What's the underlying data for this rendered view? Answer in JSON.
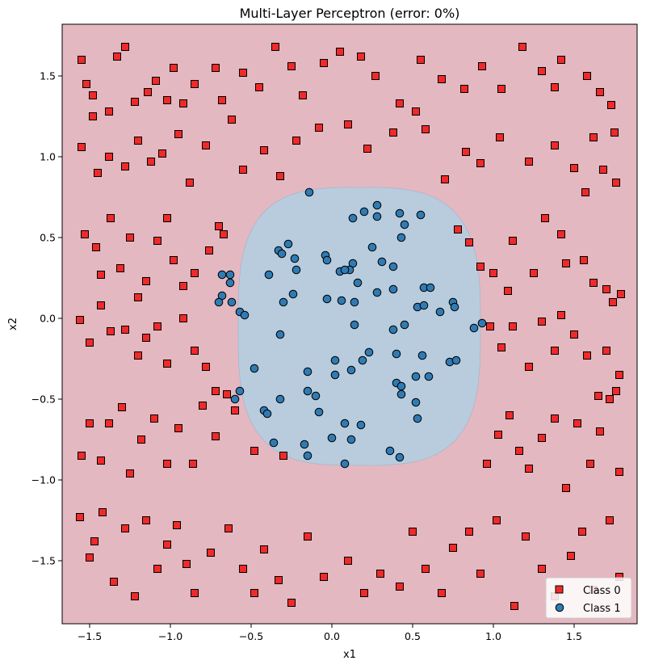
{
  "chart_data": {
    "type": "scatter",
    "title": "Multi-Layer Perceptron (error: 0%)",
    "xlabel": "x1",
    "ylabel": "x2",
    "xlim": [
      -1.67,
      1.89
    ],
    "ylim": [
      -1.89,
      1.82
    ],
    "xticks": [
      -1.5,
      -1.0,
      -0.5,
      0.0,
      0.5,
      1.0,
      1.5
    ],
    "xtick_labels": [
      "−1.5",
      "−1.0",
      "−0.5",
      "0.0",
      "0.5",
      "1.0",
      "1.5"
    ],
    "yticks": [
      -1.5,
      -1.0,
      -0.5,
      0.0,
      0.5,
      1.0,
      1.5
    ],
    "ytick_labels": [
      "−1.5",
      "−1.0",
      "−0.5",
      "0.0",
      "0.5",
      "1.0",
      "1.5"
    ],
    "grid": false,
    "legend_position": "lower-right",
    "decision_regions": {
      "outer_class": "Class 0",
      "outer_color": "#e3b8c0",
      "inner_class": "Class 1",
      "inner_color": "#b8ccdd",
      "boundary_center": [
        0.17,
        -0.05
      ],
      "boundary_radii": [
        0.75,
        0.86
      ]
    },
    "series": [
      {
        "name": "Class 0",
        "marker": "square",
        "color": "#ee2a2a",
        "points": [
          [
            -1.55,
            1.6
          ],
          [
            -1.52,
            1.45
          ],
          [
            -1.48,
            1.38
          ],
          [
            -1.38,
            1.28
          ],
          [
            -1.33,
            1.62
          ],
          [
            -1.28,
            1.68
          ],
          [
            -1.22,
            1.34
          ],
          [
            -1.14,
            1.4
          ],
          [
            -1.09,
            1.47
          ],
          [
            -1.02,
            1.35
          ],
          [
            -0.98,
            1.55
          ],
          [
            -0.92,
            1.33
          ],
          [
            -0.85,
            1.45
          ],
          [
            -0.72,
            1.55
          ],
          [
            -0.68,
            1.35
          ],
          [
            -0.55,
            1.52
          ],
          [
            -0.45,
            1.43
          ],
          [
            -0.35,
            1.68
          ],
          [
            -0.25,
            1.56
          ],
          [
            -0.18,
            1.38
          ],
          [
            -0.05,
            1.58
          ],
          [
            0.05,
            1.65
          ],
          [
            0.18,
            1.62
          ],
          [
            0.27,
            1.5
          ],
          [
            0.42,
            1.33
          ],
          [
            0.55,
            1.6
          ],
          [
            0.68,
            1.48
          ],
          [
            0.82,
            1.42
          ],
          [
            0.93,
            1.56
          ],
          [
            1.05,
            1.42
          ],
          [
            1.18,
            1.68
          ],
          [
            1.3,
            1.53
          ],
          [
            1.38,
            1.43
          ],
          [
            1.42,
            1.6
          ],
          [
            1.58,
            1.5
          ],
          [
            1.66,
            1.4
          ],
          [
            1.73,
            1.32
          ],
          [
            -1.55,
            1.06
          ],
          [
            -1.48,
            1.25
          ],
          [
            -1.45,
            0.9
          ],
          [
            -1.38,
            1.0
          ],
          [
            -1.28,
            0.94
          ],
          [
            -1.2,
            1.1
          ],
          [
            -1.12,
            0.97
          ],
          [
            -1.05,
            1.02
          ],
          [
            -0.95,
            1.14
          ],
          [
            -0.88,
            0.84
          ],
          [
            -0.78,
            1.07
          ],
          [
            -0.62,
            1.23
          ],
          [
            -0.55,
            0.92
          ],
          [
            -0.42,
            1.04
          ],
          [
            -0.32,
            0.88
          ],
          [
            -0.22,
            1.1
          ],
          [
            -0.08,
            1.18
          ],
          [
            0.1,
            1.2
          ],
          [
            0.22,
            1.05
          ],
          [
            0.38,
            1.15
          ],
          [
            0.52,
            1.28
          ],
          [
            0.58,
            1.17
          ],
          [
            0.7,
            0.86
          ],
          [
            0.83,
            1.03
          ],
          [
            0.92,
            0.96
          ],
          [
            1.04,
            1.12
          ],
          [
            1.22,
            0.97
          ],
          [
            1.38,
            1.07
          ],
          [
            1.5,
            0.93
          ],
          [
            1.62,
            1.12
          ],
          [
            1.75,
            1.15
          ],
          [
            1.76,
            0.84
          ],
          [
            1.68,
            0.92
          ],
          [
            1.57,
            0.78
          ],
          [
            -1.53,
            0.52
          ],
          [
            -1.46,
            0.44
          ],
          [
            -1.43,
            0.27
          ],
          [
            -1.37,
            0.62
          ],
          [
            -1.31,
            0.31
          ],
          [
            -1.25,
            0.5
          ],
          [
            -1.2,
            0.13
          ],
          [
            -1.15,
            0.23
          ],
          [
            -1.08,
            0.48
          ],
          [
            -1.02,
            0.62
          ],
          [
            -0.98,
            0.36
          ],
          [
            -0.92,
            0.2
          ],
          [
            -0.85,
            0.28
          ],
          [
            -0.76,
            0.42
          ],
          [
            -0.7,
            0.57
          ],
          [
            -0.67,
            0.52
          ],
          [
            0.78,
            0.55
          ],
          [
            0.85,
            0.47
          ],
          [
            0.92,
            0.32
          ],
          [
            1.0,
            0.28
          ],
          [
            1.09,
            0.17
          ],
          [
            1.12,
            0.48
          ],
          [
            1.25,
            0.28
          ],
          [
            1.32,
            0.62
          ],
          [
            1.42,
            0.52
          ],
          [
            1.45,
            0.34
          ],
          [
            1.56,
            0.36
          ],
          [
            1.62,
            0.22
          ],
          [
            1.7,
            0.18
          ],
          [
            1.74,
            0.1
          ],
          [
            1.79,
            0.15
          ],
          [
            -1.56,
            -0.01
          ],
          [
            -1.5,
            -0.15
          ],
          [
            -1.43,
            0.08
          ],
          [
            -1.37,
            -0.08
          ],
          [
            -1.28,
            -0.07
          ],
          [
            -1.2,
            -0.23
          ],
          [
            -1.15,
            -0.12
          ],
          [
            -1.08,
            -0.05
          ],
          [
            -1.02,
            -0.28
          ],
          [
            -0.92,
            0.0
          ],
          [
            -0.85,
            -0.2
          ],
          [
            -0.78,
            -0.3
          ],
          [
            -0.72,
            -0.45
          ],
          [
            -0.65,
            -0.47
          ],
          [
            0.98,
            -0.05
          ],
          [
            1.05,
            -0.18
          ],
          [
            1.12,
            -0.05
          ],
          [
            1.22,
            -0.3
          ],
          [
            1.3,
            -0.02
          ],
          [
            1.38,
            -0.2
          ],
          [
            1.42,
            0.02
          ],
          [
            1.5,
            -0.1
          ],
          [
            1.58,
            -0.23
          ],
          [
            1.65,
            -0.48
          ],
          [
            1.7,
            -0.2
          ],
          [
            1.76,
            -0.45
          ],
          [
            1.78,
            -0.35
          ],
          [
            -1.55,
            -0.85
          ],
          [
            -1.5,
            -0.65
          ],
          [
            -1.43,
            -0.88
          ],
          [
            -1.38,
            -0.65
          ],
          [
            -1.3,
            -0.55
          ],
          [
            -1.25,
            -0.96
          ],
          [
            -1.18,
            -0.75
          ],
          [
            -1.1,
            -0.62
          ],
          [
            -1.02,
            -0.9
          ],
          [
            -0.95,
            -0.68
          ],
          [
            -0.86,
            -0.9
          ],
          [
            -0.8,
            -0.54
          ],
          [
            -0.72,
            -0.73
          ],
          [
            -0.6,
            -0.57
          ],
          [
            -0.48,
            -0.82
          ],
          [
            -0.3,
            -0.85
          ],
          [
            0.96,
            -0.9
          ],
          [
            1.03,
            -0.72
          ],
          [
            1.1,
            -0.6
          ],
          [
            1.16,
            -0.82
          ],
          [
            1.22,
            -0.93
          ],
          [
            1.3,
            -0.74
          ],
          [
            1.38,
            -0.62
          ],
          [
            1.45,
            -1.05
          ],
          [
            1.52,
            -0.65
          ],
          [
            1.6,
            -0.9
          ],
          [
            1.66,
            -0.7
          ],
          [
            1.72,
            -0.5
          ],
          [
            1.78,
            -0.95
          ],
          [
            -1.56,
            -1.23
          ],
          [
            -1.5,
            -1.48
          ],
          [
            -1.47,
            -1.38
          ],
          [
            -1.42,
            -1.2
          ],
          [
            -1.35,
            -1.63
          ],
          [
            -1.28,
            -1.3
          ],
          [
            -1.22,
            -1.72
          ],
          [
            -1.15,
            -1.25
          ],
          [
            -1.08,
            -1.55
          ],
          [
            -1.02,
            -1.4
          ],
          [
            -0.96,
            -1.28
          ],
          [
            -0.9,
            -1.52
          ],
          [
            -0.85,
            -1.7
          ],
          [
            -0.75,
            -1.45
          ],
          [
            -0.64,
            -1.3
          ],
          [
            -0.55,
            -1.55
          ],
          [
            -0.48,
            -1.7
          ],
          [
            -0.42,
            -1.43
          ],
          [
            -0.33,
            -1.62
          ],
          [
            -0.25,
            -1.76
          ],
          [
            -0.15,
            -1.35
          ],
          [
            -0.05,
            -1.6
          ],
          [
            0.1,
            -1.5
          ],
          [
            0.2,
            -1.7
          ],
          [
            0.3,
            -1.58
          ],
          [
            0.42,
            -1.66
          ],
          [
            0.5,
            -1.32
          ],
          [
            0.58,
            -1.55
          ],
          [
            0.68,
            -1.7
          ],
          [
            0.75,
            -1.42
          ],
          [
            0.85,
            -1.32
          ],
          [
            0.92,
            -1.58
          ],
          [
            1.02,
            -1.25
          ],
          [
            1.13,
            -1.78
          ],
          [
            1.2,
            -1.35
          ],
          [
            1.3,
            -1.55
          ],
          [
            1.38,
            -1.72
          ],
          [
            1.48,
            -1.47
          ],
          [
            1.55,
            -1.32
          ],
          [
            1.62,
            -1.68
          ],
          [
            1.72,
            -1.25
          ],
          [
            1.78,
            -1.6
          ]
        ]
      },
      {
        "name": "Class 1",
        "marker": "circle",
        "color": "#2f7bb4",
        "points": [
          [
            -0.14,
            0.78
          ],
          [
            0.13,
            0.62
          ],
          [
            0.2,
            0.66
          ],
          [
            0.28,
            0.7
          ],
          [
            0.28,
            0.63
          ],
          [
            0.42,
            0.65
          ],
          [
            0.55,
            0.64
          ],
          [
            0.45,
            0.58
          ],
          [
            0.43,
            0.5
          ],
          [
            -0.33,
            0.42
          ],
          [
            -0.31,
            0.4
          ],
          [
            -0.27,
            0.46
          ],
          [
            -0.23,
            0.37
          ],
          [
            -0.04,
            0.39
          ],
          [
            -0.03,
            0.36
          ],
          [
            0.13,
            0.34
          ],
          [
            0.25,
            0.44
          ],
          [
            0.31,
            0.35
          ],
          [
            0.38,
            0.32
          ],
          [
            0.11,
            0.3
          ],
          [
            -0.68,
            0.27
          ],
          [
            -0.63,
            0.27
          ],
          [
            -0.39,
            0.27
          ],
          [
            -0.22,
            0.3
          ],
          [
            0.05,
            0.29
          ],
          [
            0.08,
            0.3
          ],
          [
            0.16,
            0.22
          ],
          [
            -0.63,
            0.22
          ],
          [
            -0.68,
            0.14
          ],
          [
            -0.7,
            0.1
          ],
          [
            -0.62,
            0.1
          ],
          [
            -0.57,
            0.04
          ],
          [
            -0.54,
            0.02
          ],
          [
            -0.3,
            0.1
          ],
          [
            -0.24,
            0.15
          ],
          [
            -0.03,
            0.12
          ],
          [
            0.06,
            0.11
          ],
          [
            0.14,
            0.1
          ],
          [
            0.28,
            0.16
          ],
          [
            0.38,
            0.18
          ],
          [
            0.57,
            0.19
          ],
          [
            0.61,
            0.19
          ],
          [
            0.53,
            0.07
          ],
          [
            0.57,
            0.08
          ],
          [
            0.75,
            0.1
          ],
          [
            0.76,
            0.07
          ],
          [
            0.67,
            0.04
          ],
          [
            -0.32,
            -0.1
          ],
          [
            0.14,
            -0.04
          ],
          [
            0.38,
            -0.07
          ],
          [
            0.45,
            -0.04
          ],
          [
            0.93,
            -0.03
          ],
          [
            0.88,
            -0.06
          ],
          [
            0.02,
            -0.26
          ],
          [
            0.19,
            -0.26
          ],
          [
            0.23,
            -0.21
          ],
          [
            0.4,
            -0.22
          ],
          [
            0.56,
            -0.23
          ],
          [
            0.73,
            -0.27
          ],
          [
            0.77,
            -0.26
          ],
          [
            -0.48,
            -0.31
          ],
          [
            -0.15,
            -0.33
          ],
          [
            0.12,
            -0.32
          ],
          [
            0.02,
            -0.35
          ],
          [
            -0.57,
            -0.45
          ],
          [
            -0.6,
            -0.5
          ],
          [
            -0.32,
            -0.5
          ],
          [
            -0.15,
            -0.45
          ],
          [
            -0.1,
            -0.48
          ],
          [
            0.4,
            -0.4
          ],
          [
            0.43,
            -0.42
          ],
          [
            0.43,
            -0.47
          ],
          [
            0.52,
            -0.36
          ],
          [
            0.6,
            -0.36
          ],
          [
            0.52,
            -0.52
          ],
          [
            -0.42,
            -0.57
          ],
          [
            -0.4,
            -0.59
          ],
          [
            -0.08,
            -0.58
          ],
          [
            0.08,
            -0.65
          ],
          [
            0.18,
            -0.66
          ],
          [
            0.53,
            -0.62
          ],
          [
            -0.36,
            -0.77
          ],
          [
            -0.17,
            -0.78
          ],
          [
            -0.15,
            -0.85
          ],
          [
            0.0,
            -0.74
          ],
          [
            0.12,
            -0.75
          ],
          [
            0.36,
            -0.82
          ],
          [
            0.42,
            -0.86
          ],
          [
            0.08,
            -0.9
          ]
        ]
      }
    ],
    "legend": [
      "Class 0",
      "Class 1"
    ]
  }
}
